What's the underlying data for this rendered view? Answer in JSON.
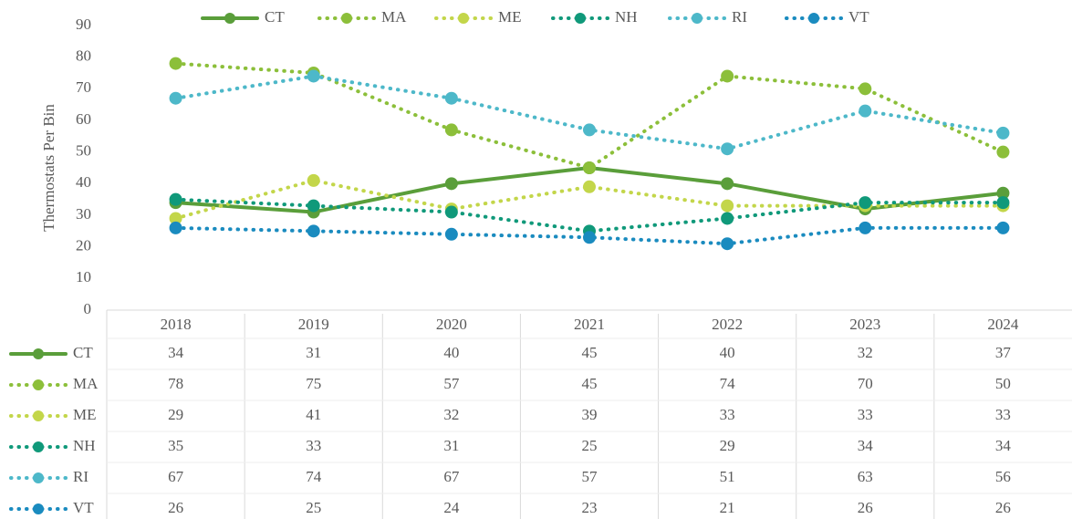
{
  "chart_data": {
    "type": "line",
    "y_label": "Thermostats Per Bin",
    "categories": [
      "2018",
      "2019",
      "2020",
      "2021",
      "2022",
      "2023",
      "2024"
    ],
    "series": [
      {
        "name": "CT",
        "color": "#5a9e3a",
        "style": "solid",
        "values": [
          34,
          31,
          40,
          45,
          40,
          32,
          37
        ]
      },
      {
        "name": "MA",
        "color": "#8cbf3a",
        "style": "dotted",
        "values": [
          78,
          75,
          57,
          45,
          74,
          70,
          50
        ]
      },
      {
        "name": "ME",
        "color": "#c3d64a",
        "style": "dotted",
        "values": [
          29,
          41,
          32,
          39,
          33,
          33,
          33
        ]
      },
      {
        "name": "NH",
        "color": "#10997a",
        "style": "dotted",
        "values": [
          35,
          33,
          31,
          25,
          29,
          34,
          34
        ]
      },
      {
        "name": "RI",
        "color": "#4db8c9",
        "style": "dotted",
        "values": [
          67,
          74,
          67,
          57,
          51,
          63,
          56
        ]
      },
      {
        "name": "VT",
        "color": "#1a8bbf",
        "style": "dotted",
        "values": [
          26,
          25,
          24,
          23,
          21,
          26,
          26
        ]
      }
    ],
    "ylim": [
      0,
      90
    ],
    "yticks": [
      0,
      10,
      20,
      30,
      40,
      50,
      60,
      70,
      80,
      90
    ],
    "legend": "top",
    "data_table": true
  }
}
